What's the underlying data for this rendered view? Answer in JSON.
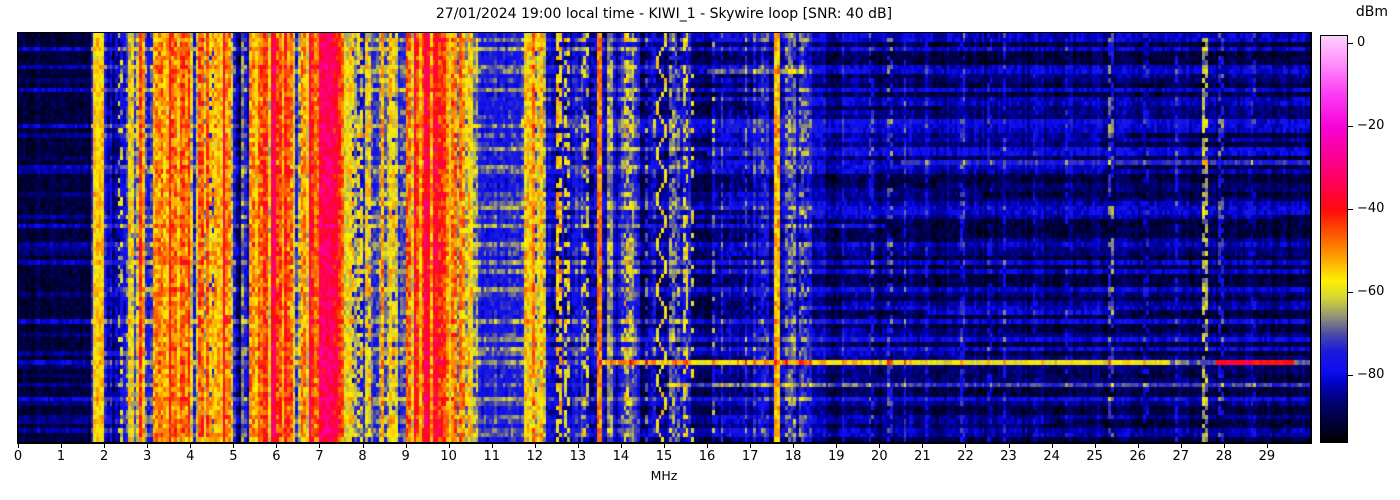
{
  "figure": {
    "title": "27/01/2024 19:00 local time - KIWI_1 - Skywire loop [SNR: 40 dB]",
    "xlabel": "MHz",
    "colorbar_label": "dBm",
    "x_tick_labels": [
      "0",
      "1",
      "2",
      "3",
      "4",
      "5",
      "6",
      "7",
      "8",
      "9",
      "10",
      "11",
      "12",
      "13",
      "14",
      "15",
      "16",
      "17",
      "18",
      "19",
      "20",
      "21",
      "22",
      "23",
      "24",
      "25",
      "26",
      "27",
      "28",
      "29"
    ],
    "colorbar_tick_labels": [
      "0",
      "−20",
      "−40",
      "−60",
      "−80"
    ],
    "background_color": "#ffffff",
    "axis_color": "#000000"
  },
  "chart_data": {
    "type": "heatmap",
    "subtype": "hf-spectrogram-waterfall",
    "title": "27/01/2024 19:00 local time - KIWI_1 - Skywire loop [SNR: 40 dB]",
    "xlabel": "MHz",
    "ylabel": "",
    "colorbar_label": "dBm",
    "x_range_mhz": [
      0,
      30
    ],
    "x_ticks_mhz": [
      0,
      1,
      2,
      3,
      4,
      5,
      6,
      7,
      8,
      9,
      10,
      11,
      12,
      13,
      14,
      15,
      16,
      17,
      18,
      19,
      20,
      21,
      22,
      23,
      24,
      25,
      26,
      27,
      28,
      29
    ],
    "colorbar_ticks_dbm": [
      0,
      -20,
      -40,
      -60,
      -80
    ],
    "value_range_dbm": [
      -96,
      2
    ],
    "grid_cols": 480,
    "grid_rows": 90,
    "seed": 1337,
    "colormap_stops": [
      [
        2,
        "#fdd0fd"
      ],
      [
        -5,
        "#fe8cfa"
      ],
      [
        -12,
        "#fd3bf3"
      ],
      [
        -20,
        "#f603d7"
      ],
      [
        -27,
        "#fb0194"
      ],
      [
        -34,
        "#ff0150"
      ],
      [
        -40,
        "#fe0b0b"
      ],
      [
        -46,
        "#fc5a01"
      ],
      [
        -52,
        "#fda701"
      ],
      [
        -57,
        "#fdf001"
      ],
      [
        -61,
        "#d8d833"
      ],
      [
        -66,
        "#8e8e7a"
      ],
      [
        -70,
        "#4a4aa8"
      ],
      [
        -74,
        "#1b1bdc"
      ],
      [
        -79,
        "#0d0df0"
      ],
      [
        -82,
        "#0101c0"
      ],
      [
        -87,
        "#01016a"
      ],
      [
        -92,
        "#000030"
      ],
      [
        -96,
        "#000000"
      ]
    ],
    "band_profile": [
      [
        0.0,
        1.7,
        -91,
        2,
        3
      ],
      [
        1.7,
        1.8,
        -80,
        5,
        4
      ],
      [
        1.8,
        1.97,
        -58,
        6,
        5
      ],
      [
        1.97,
        2.2,
        -77,
        5,
        5
      ],
      [
        2.2,
        2.5,
        -82,
        6,
        5
      ],
      [
        2.5,
        2.95,
        -67,
        9,
        7
      ],
      [
        2.95,
        3.15,
        -74,
        7,
        6
      ],
      [
        3.15,
        3.55,
        -61,
        9,
        7
      ],
      [
        3.55,
        4.1,
        -54,
        9,
        7
      ],
      [
        4.1,
        4.5,
        -58,
        9,
        7
      ],
      [
        4.5,
        4.78,
        -69,
        9,
        6
      ],
      [
        4.78,
        5.02,
        -62,
        10,
        7
      ],
      [
        5.02,
        5.35,
        -72,
        8,
        6
      ],
      [
        5.35,
        5.62,
        -63,
        10,
        7
      ],
      [
        5.62,
        6.42,
        -51,
        9,
        7
      ],
      [
        6.42,
        6.75,
        -60,
        10,
        7
      ],
      [
        6.75,
        7.05,
        -46,
        8,
        6
      ],
      [
        7.05,
        7.45,
        -39,
        7,
        6
      ],
      [
        7.45,
        7.58,
        -48,
        8,
        6
      ],
      [
        7.58,
        8.35,
        -72,
        8,
        6
      ],
      [
        8.35,
        8.65,
        -62,
        9,
        7
      ],
      [
        8.65,
        8.98,
        -69,
        9,
        6
      ],
      [
        8.98,
        9.35,
        -55,
        9,
        7
      ],
      [
        9.35,
        9.95,
        -45,
        8,
        7
      ],
      [
        9.95,
        10.45,
        -54,
        8,
        7
      ],
      [
        10.45,
        10.68,
        -64,
        8,
        6
      ],
      [
        10.68,
        11.75,
        -76,
        3,
        5
      ],
      [
        11.75,
        12.25,
        -65,
        9,
        7
      ],
      [
        12.25,
        12.9,
        -82,
        5,
        5
      ],
      [
        12.9,
        13.42,
        -81,
        6,
        6
      ],
      [
        13.42,
        14.0,
        -85,
        4,
        5
      ],
      [
        14.0,
        14.42,
        -79,
        6,
        6
      ],
      [
        14.42,
        15.0,
        -87,
        3,
        4
      ],
      [
        15.0,
        15.62,
        -84,
        4,
        5
      ],
      [
        15.62,
        16.1,
        -90,
        2,
        3
      ],
      [
        16.1,
        17.8,
        -84,
        4,
        5
      ],
      [
        17.8,
        18.45,
        -82,
        4,
        5
      ],
      [
        18.45,
        19.5,
        -88,
        3,
        4
      ],
      [
        19.5,
        30.01,
        -90,
        2.5,
        3.5
      ]
    ],
    "carriers": [
      [
        1.86,
        0.1,
        -56,
        1
      ],
      [
        2.35,
        0.05,
        -62,
        0.3
      ],
      [
        2.63,
        0.07,
        -59,
        1
      ],
      [
        2.78,
        0.06,
        -61,
        0.8
      ],
      [
        3.33,
        0.06,
        -50,
        1
      ],
      [
        3.45,
        0.05,
        -53,
        0.9
      ],
      [
        3.62,
        0.06,
        -48,
        1
      ],
      [
        3.8,
        0.07,
        -46,
        1
      ],
      [
        3.95,
        0.05,
        -50,
        1
      ],
      [
        4.27,
        0.06,
        -47,
        1
      ],
      [
        4.48,
        0.05,
        -54,
        0.8
      ],
      [
        4.63,
        0.05,
        -54,
        1
      ],
      [
        4.85,
        0.06,
        -51,
        1
      ],
      [
        5.45,
        0.05,
        -51,
        1
      ],
      [
        5.6,
        0.05,
        -48,
        1
      ],
      [
        5.75,
        0.06,
        -44,
        1
      ],
      [
        5.95,
        0.06,
        -42,
        1
      ],
      [
        6.07,
        0.05,
        -45,
        1
      ],
      [
        6.3,
        0.05,
        -47,
        0.9
      ],
      [
        6.6,
        0.05,
        -51,
        1
      ],
      [
        6.79,
        0.05,
        -44,
        1
      ],
      [
        7.1,
        0.08,
        -34,
        1
      ],
      [
        7.22,
        0.08,
        -33,
        1
      ],
      [
        7.35,
        0.06,
        -37,
        1
      ],
      [
        7.78,
        0.05,
        -58,
        0.7
      ],
      [
        7.94,
        0.05,
        -60,
        0.6
      ],
      [
        8.12,
        0.05,
        -57,
        0.8
      ],
      [
        8.47,
        0.05,
        -57,
        1
      ],
      [
        8.7,
        0.05,
        -57,
        0.8
      ],
      [
        9.05,
        0.06,
        -49,
        1
      ],
      [
        9.27,
        0.05,
        -46,
        1
      ],
      [
        9.5,
        0.07,
        -40,
        1
      ],
      [
        9.66,
        0.07,
        -38,
        1
      ],
      [
        9.82,
        0.05,
        -42,
        1
      ],
      [
        10.12,
        0.06,
        -49,
        1
      ],
      [
        10.3,
        0.05,
        -52,
        1
      ],
      [
        10.52,
        0.05,
        -57,
        1
      ],
      [
        11.9,
        0.06,
        -57,
        1
      ],
      [
        12.07,
        0.05,
        -59,
        0.8
      ],
      [
        12.57,
        0.06,
        -56,
        0.7
      ],
      [
        12.75,
        0.05,
        -60,
        0.5
      ],
      [
        13.2,
        0.04,
        -62,
        0.4
      ],
      [
        13.5,
        0.07,
        -50,
        1
      ],
      [
        13.75,
        0.06,
        -67,
        1
      ],
      [
        14.1,
        0.05,
        -58,
        0.35
      ],
      [
        14.24,
        0.04,
        -66,
        0.6
      ],
      [
        14.6,
        0.04,
        -74,
        0.5
      ],
      [
        14.78,
        0.04,
        -76,
        0.5
      ],
      [
        15.2,
        0.06,
        -69,
        0.8
      ],
      [
        15.32,
        0.05,
        -70,
        0.7
      ],
      [
        15.5,
        0.05,
        -61,
        0.45
      ],
      [
        15.66,
        0.04,
        -60,
        0.2
      ],
      [
        16.15,
        0.05,
        -68,
        0.3
      ],
      [
        16.35,
        0.04,
        -76,
        0.7
      ],
      [
        16.9,
        0.04,
        -75,
        0.6
      ],
      [
        17.1,
        0.04,
        -77,
        0.7
      ],
      [
        17.32,
        0.04,
        -76,
        0.6
      ],
      [
        17.65,
        0.07,
        -54,
        1
      ],
      [
        17.88,
        0.05,
        -72,
        0.8
      ],
      [
        18.02,
        0.05,
        -70,
        0.8
      ],
      [
        18.17,
        0.05,
        -73,
        0.7
      ],
      [
        18.32,
        0.04,
        -75,
        0.6
      ],
      [
        19.15,
        0.04,
        -81,
        0.5
      ],
      [
        19.8,
        0.04,
        -79,
        0.5
      ],
      [
        20.25,
        0.04,
        -77,
        0.4
      ],
      [
        20.6,
        0.04,
        -78,
        0.6
      ],
      [
        21.1,
        0.04,
        -81,
        0.4
      ],
      [
        21.95,
        0.04,
        -79,
        0.5
      ],
      [
        22.55,
        0.04,
        -82,
        0.4
      ],
      [
        22.9,
        0.04,
        -80,
        0.5
      ],
      [
        23.6,
        0.04,
        -83,
        0.4
      ],
      [
        24.35,
        0.04,
        -82,
        0.4
      ],
      [
        25.35,
        0.05,
        -75,
        0.55
      ],
      [
        26.2,
        0.04,
        -83,
        0.4
      ],
      [
        26.9,
        0.04,
        -79,
        0.5
      ],
      [
        27.55,
        0.06,
        -66,
        0.6
      ],
      [
        27.95,
        0.04,
        -78,
        0.5
      ],
      [
        28.7,
        0.04,
        -82,
        0.4
      ]
    ],
    "streaks": [
      {
        "y_frac": 0.8,
        "f_start": 13.5,
        "f_end": 30.0,
        "boost_db": 22
      },
      {
        "y_frac": 0.8,
        "f_start": 27.8,
        "f_end": 29.6,
        "boost_db": 30
      },
      {
        "y_frac": 0.855,
        "f_start": 15.0,
        "f_end": 30.0,
        "boost_db": 13
      },
      {
        "y_frac": 0.085,
        "f_start": 16.0,
        "f_end": 30.0,
        "boost_db": 10
      },
      {
        "y_frac": 0.29,
        "f_start": 16.0,
        "f_end": 30.0,
        "boost_db": 11
      },
      {
        "y_frac": 0.315,
        "f_start": 20.5,
        "f_end": 30.0,
        "boost_db": 9
      }
    ],
    "zigzag": {
      "freq_mhz": 14.95,
      "amp_mhz": 0.11,
      "period_rows": 10,
      "dbm": -57
    }
  }
}
